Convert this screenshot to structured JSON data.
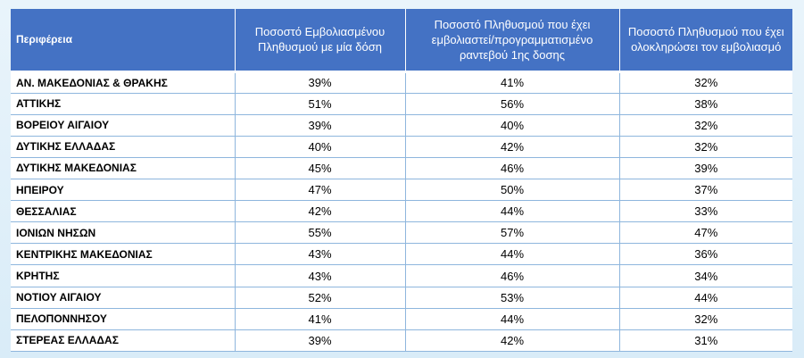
{
  "table": {
    "headers": [
      "Περιφέρεια",
      "Ποσοστό Εμβολιασμένου Πληθυσμού με μία δόση",
      "Ποσοστό Πληθυσμού  που έχει εμβολιαστεί/προγραμματισμένο ραντεβού 1ης δοσης",
      "Ποσοστό Πληθυσμού που έχει ολοκληρώσει τον εμβολιασμό"
    ],
    "rows": [
      [
        "ΑΝ. ΜΑΚΕΔΟΝΙΑΣ & ΘΡΑΚΗΣ",
        "39%",
        "41%",
        "32%"
      ],
      [
        "ΑΤΤΙΚΗΣ",
        "51%",
        "56%",
        "38%"
      ],
      [
        "ΒΟΡΕΙΟΥ ΑΙΓΑΙΟΥ",
        "39%",
        "40%",
        "32%"
      ],
      [
        "ΔΥΤΙΚΗΣ ΕΛΛΑΔΑΣ",
        "40%",
        "42%",
        "32%"
      ],
      [
        "ΔΥΤΙΚΗΣ ΜΑΚΕΔΟΝΙΑΣ",
        "45%",
        "46%",
        "39%"
      ],
      [
        "ΗΠΕΙΡΟΥ",
        "47%",
        "50%",
        "37%"
      ],
      [
        "ΘΕΣΣΑΛΙΑΣ",
        "42%",
        "44%",
        "33%"
      ],
      [
        "ΙΟΝΙΩΝ ΝΗΣΩΝ",
        "55%",
        "57%",
        "47%"
      ],
      [
        "ΚΕΝΤΡΙΚΗΣ ΜΑΚΕΔΟΝΙΑΣ",
        "43%",
        "44%",
        "36%"
      ],
      [
        "ΚΡΗΤΗΣ",
        "43%",
        "46%",
        "34%"
      ],
      [
        "ΝΟΤΙΟΥ ΑΙΓΑΙΟΥ",
        "52%",
        "53%",
        "44%"
      ],
      [
        "ΠΕΛΟΠΟΝΝΗΣΟΥ",
        "41%",
        "44%",
        "32%"
      ],
      [
        "ΣΤΕΡΕΑΣ ΕΛΛΑΔΑΣ",
        "39%",
        "42%",
        "31%"
      ]
    ]
  },
  "colors": {
    "header_bg": "#4472c4",
    "header_text": "#ffffff",
    "grid_line": "#8eb6dd",
    "background": "#e9f4fb"
  }
}
